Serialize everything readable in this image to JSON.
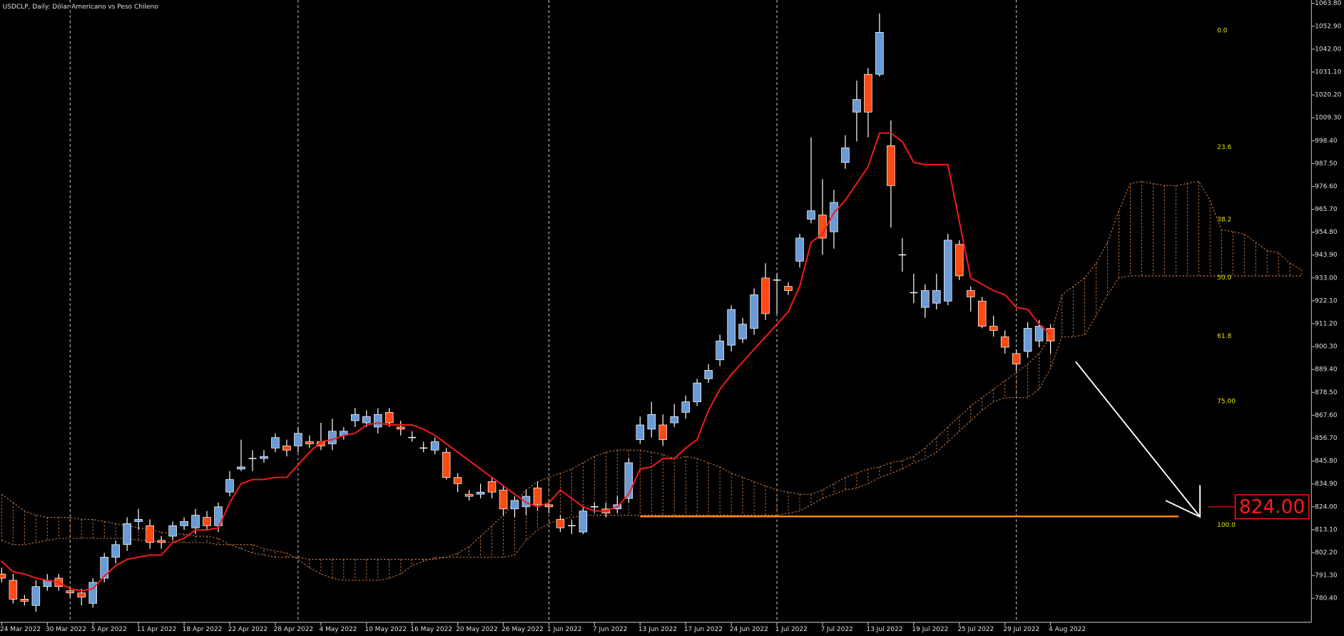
{
  "chart_data": {
    "type": "candlestick",
    "title": "USDCLP, Daily:  Dólar Americano vs Peso Chileno",
    "categories": [
      "24 Mar 2022",
      null,
      null,
      null,
      "30 Mar 2022",
      null,
      null,
      null,
      "5 Apr 2022",
      null,
      null,
      null,
      "11 Apr 2022",
      null,
      null,
      null,
      "18 Apr 2022",
      null,
      null,
      null,
      "22 Apr 2022",
      null,
      null,
      null,
      "28 Apr 2022",
      null,
      null,
      null,
      "4 May 2022",
      null,
      null,
      null,
      "10 May 2022",
      null,
      null,
      null,
      "16 May 2022",
      null,
      null,
      null,
      "20 May 2022",
      null,
      null,
      null,
      "26 May 2022",
      null,
      null,
      null,
      "1 Jun 2022",
      null,
      null,
      null,
      "7 Jun 2022",
      null,
      null,
      null,
      "13 Jun 2022",
      null,
      null,
      null,
      "17 Jun 2022",
      null,
      null,
      null,
      "24 Jun 2022",
      null,
      null,
      null,
      "1 Jul 2022",
      null,
      null,
      null,
      "7 Jul 2022",
      null,
      null,
      null,
      "13 Jul 2022",
      null,
      null,
      null,
      "19 Jul 2022",
      null,
      null,
      null,
      "25 Jul 2022",
      null,
      null,
      null,
      "29 Jul 2022",
      null,
      null,
      null,
      "4 Aug 2022"
    ],
    "open": [
      792,
      789,
      780,
      777,
      786,
      790,
      784,
      783,
      778,
      790,
      800,
      806,
      817,
      815,
      808,
      810,
      815,
      814,
      819,
      815,
      831,
      842,
      847,
      847,
      852,
      853,
      853,
      855,
      855,
      854,
      858,
      865,
      864,
      862,
      869,
      862,
      857,
      852,
      851,
      850,
      838,
      830,
      830,
      836,
      832,
      823,
      824,
      833,
      825,
      818,
      815,
      812,
      824,
      823,
      823,
      828,
      856,
      861,
      863,
      864,
      869,
      874,
      885,
      894,
      901,
      904,
      909,
      933,
      932,
      929,
      941,
      961,
      963,
      955,
      988,
      1012,
      1030,
      1030,
      996,
      944,
      926,
      919,
      921,
      922,
      949,
      927,
      922,
      910,
      905,
      897,
      898,
      903,
      909
    ],
    "high": [
      795,
      792,
      782,
      789,
      792,
      792,
      786,
      785,
      790,
      802,
      808,
      819,
      823,
      818,
      810,
      817,
      819,
      823,
      822,
      826,
      841,
      856,
      851,
      851,
      859,
      856,
      862,
      858,
      864,
      866,
      862,
      871,
      870,
      871,
      871,
      865,
      860,
      855,
      857,
      852,
      840,
      832,
      835,
      838,
      834,
      829,
      832,
      836,
      827,
      820,
      818,
      824,
      826,
      826,
      829,
      847,
      867,
      874,
      868,
      873,
      877,
      885,
      892,
      906,
      920,
      914,
      928,
      940,
      935,
      931,
      954,
      1000,
      980,
      975,
      1001,
      1027,
      1033,
      1059,
      1008,
      952,
      935,
      930,
      935,
      954,
      951,
      929,
      924,
      915,
      908,
      899,
      912,
      913,
      911
    ],
    "low": [
      788,
      778,
      777,
      774,
      784,
      784,
      781,
      777,
      776,
      788,
      797,
      803,
      813,
      804,
      804,
      808,
      813,
      811,
      813,
      812,
      829,
      841,
      841,
      845,
      850,
      848,
      850,
      852,
      851,
      851,
      856,
      862,
      862,
      859,
      862,
      858,
      855,
      850,
      849,
      837,
      831,
      827,
      828,
      828,
      820,
      819,
      820,
      822,
      821,
      812,
      811,
      811,
      821,
      819,
      821,
      826,
      854,
      857,
      853,
      862,
      866,
      872,
      883,
      891,
      898,
      902,
      906,
      913,
      916,
      925,
      938,
      959,
      944,
      947,
      985,
      998,
      1000,
      1029,
      957,
      936,
      921,
      914,
      918,
      920,
      932,
      917,
      909,
      905,
      897,
      889,
      895,
      900,
      897
    ],
    "close": [
      790,
      780,
      779,
      786,
      789,
      786,
      783,
      781,
      788,
      800,
      806,
      816,
      818,
      807,
      807,
      815,
      817,
      820,
      815,
      824,
      837,
      843,
      847,
      848,
      857,
      851,
      859,
      854,
      853,
      860,
      860,
      868,
      867,
      868,
      864,
      861,
      857,
      852,
      855,
      838,
      835,
      829,
      831,
      831,
      823,
      827,
      829,
      825,
      824,
      814,
      815,
      822,
      824,
      821,
      825,
      845,
      863,
      868,
      856,
      867,
      874,
      883,
      889,
      903,
      918,
      911,
      925,
      916,
      932,
      927,
      952,
      965,
      952,
      969,
      995,
      1018,
      1012,
      1050,
      977,
      944,
      926,
      927,
      927,
      951,
      934,
      924,
      910,
      908,
      900,
      892,
      909,
      910,
      903
    ],
    "up_color": "#6b9bd6",
    "down_color": "#ff4a12",
    "line": {
      "color": "#ff1a1a",
      "values": [
        798,
        793,
        792,
        790,
        789,
        788,
        785,
        784,
        785,
        791,
        796,
        799,
        800,
        801,
        801,
        807,
        809,
        813,
        813,
        814,
        826,
        835,
        837,
        837,
        838,
        838,
        844,
        850,
        855,
        856,
        858,
        859,
        863,
        864,
        863,
        863,
        863,
        861,
        858,
        854,
        850,
        846,
        842,
        838,
        834,
        830,
        826,
        824,
        826,
        832,
        828,
        824,
        822,
        822,
        824,
        830,
        842,
        843,
        847,
        847,
        852,
        856,
        870,
        880,
        887,
        893,
        899,
        905,
        911,
        917,
        929,
        950,
        954,
        964,
        970,
        978,
        986,
        1002,
        1002,
        998,
        988,
        987,
        987,
        987,
        960,
        933,
        930,
        927,
        925,
        919,
        918,
        911,
        906
      ]
    },
    "cloud": {
      "color": "#c8783a",
      "span_a": [
        830,
        826,
        822,
        820,
        819,
        819,
        819,
        818,
        818,
        817,
        816,
        815,
        814,
        813,
        812,
        811,
        811,
        810,
        810,
        809,
        806,
        804,
        802,
        801,
        800,
        800,
        800,
        799,
        799,
        799,
        799,
        799,
        799,
        799,
        799,
        799,
        799,
        799,
        799,
        800,
        802,
        805,
        810,
        815,
        820,
        826,
        832,
        836,
        838,
        840,
        842,
        845,
        848,
        850,
        851,
        851,
        851,
        850,
        849,
        847,
        848,
        847,
        845,
        843,
        840,
        838,
        836,
        834,
        832,
        831,
        830,
        830,
        832,
        835,
        838,
        840,
        842,
        843,
        845,
        846,
        848,
        852,
        857,
        862,
        867,
        872,
        876,
        880,
        884,
        888,
        892,
        897,
        905,
        925,
        929,
        933,
        940,
        950,
        965,
        978,
        979,
        978,
        977,
        977,
        978,
        979,
        970,
        956,
        955,
        954,
        950,
        946,
        945,
        940,
        937
      ],
      "span_b": [
        808,
        806,
        806,
        807,
        808,
        809,
        809,
        809,
        809,
        809,
        809,
        809,
        808,
        808,
        807,
        807,
        807,
        807,
        807,
        806,
        806,
        806,
        806,
        804,
        803,
        802,
        799,
        795,
        792,
        790,
        789,
        789,
        789,
        789,
        790,
        792,
        796,
        798,
        800,
        800,
        800,
        800,
        800,
        800,
        800,
        801,
        808,
        813,
        816,
        818,
        819,
        820,
        820,
        820,
        820,
        820,
        820,
        820,
        820,
        820,
        820,
        820,
        820,
        820,
        820,
        820,
        820,
        820,
        820,
        821,
        822,
        825,
        828,
        830,
        832,
        833,
        835,
        838,
        840,
        842,
        845,
        847,
        850,
        855,
        860,
        865,
        870,
        874,
        876,
        876,
        876,
        880,
        890,
        905,
        905,
        906,
        915,
        925,
        933,
        934,
        934,
        934,
        934,
        934,
        934,
        934,
        934,
        934,
        934,
        934,
        934,
        934,
        934,
        934,
        934
      ]
    },
    "fib_levels": [
      {
        "label": "0.0",
        "value": 1049.2
      },
      {
        "label": "23.6",
        "value": 993.6
      },
      {
        "label": "38.2",
        "value": 959.2
      },
      {
        "label": "50.0",
        "value": 931.5
      },
      {
        "label": "61.8",
        "value": 903.7
      },
      {
        "label": "75.00",
        "value": 872.6
      },
      {
        "label": "100.0",
        "value": 813.7
      }
    ],
    "fib_color": "#e6e600",
    "support_line": {
      "value": 819.4,
      "color": "#ff8c1a"
    },
    "target": {
      "value": 824,
      "label": "824.00",
      "color": "#ff1a1a"
    },
    "ylim": [
      769,
      1065.4
    ],
    "yticks": [
      {
        "value": 1063.8,
        "label": "1063.80"
      },
      {
        "value": 1052.9,
        "label": "1052.90"
      },
      {
        "value": 1042,
        "label": "1042.00"
      },
      {
        "value": 1031.1,
        "label": "1031.10"
      },
      {
        "value": 1020.2,
        "label": "1020.20"
      },
      {
        "value": 1009.3,
        "label": "1009.30"
      },
      {
        "value": 998.4,
        "label": "998.40"
      },
      {
        "value": 987.5,
        "label": "987.50"
      },
      {
        "value": 976.6,
        "label": "976.60"
      },
      {
        "value": 965.7,
        "label": "965.70"
      },
      {
        "value": 954.8,
        "label": "954.80"
      },
      {
        "value": 943.9,
        "label": "943.90"
      },
      {
        "value": 933,
        "label": "933.00"
      },
      {
        "value": 922.1,
        "label": "922.10"
      },
      {
        "value": 911.2,
        "label": "911.20"
      },
      {
        "value": 900.3,
        "label": "900.30"
      },
      {
        "value": 889.4,
        "label": "889.40"
      },
      {
        "value": 878.5,
        "label": "878.50"
      },
      {
        "value": 867.6,
        "label": "867.60"
      },
      {
        "value": 856.7,
        "label": "856.70"
      },
      {
        "value": 845.8,
        "label": "845.80"
      },
      {
        "value": 834.9,
        "label": "834.90"
      },
      {
        "value": 824,
        "label": "824.00"
      },
      {
        "value": 813.1,
        "label": "813.10"
      },
      {
        "value": 802.2,
        "label": "802.20"
      },
      {
        "value": 791.3,
        "label": "791.30"
      },
      {
        "value": 780.4,
        "label": "780.40"
      }
    ]
  }
}
